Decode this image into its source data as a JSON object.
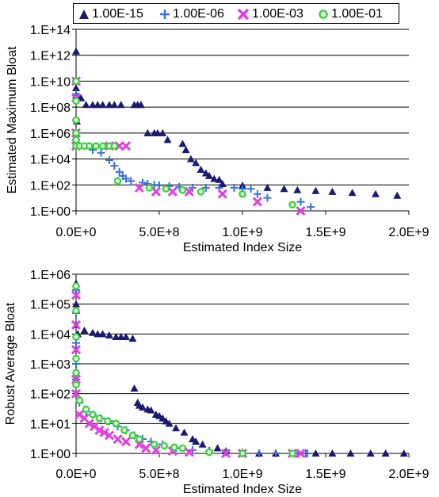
{
  "legend": [
    {
      "label": "1.00E-15",
      "color": "#1a1a6e",
      "marker": "triangle"
    },
    {
      "label": "1.00E-06",
      "color": "#3a6fd8",
      "marker": "plus"
    },
    {
      "label": "1.00E-03",
      "color": "#e040e0",
      "marker": "x"
    },
    {
      "label": "1.00E-01",
      "color": "#3bd43b",
      "marker": "circle"
    }
  ],
  "chart_data": [
    {
      "type": "scatter",
      "title": "",
      "xlabel": "Estimated Index Size",
      "ylabel": "Estimated Maximum Bloat",
      "xlim": [
        0,
        2000000000
      ],
      "ylim": [
        1,
        100000000000000
      ],
      "yscale": "log",
      "grid": "horizontal",
      "legend_position": "top",
      "x_ticks": [
        "0.0E+0",
        "5.0E+8",
        "1.0E+9",
        "1.5E+9",
        "2.0E+9"
      ],
      "y_ticks": [
        "1.E+00",
        "1.E+02",
        "1.E+04",
        "1.E+06",
        "1.E+08",
        "1.E+10",
        "1.E+12",
        "1.E+14"
      ],
      "series": [
        {
          "name": "1.00E-15",
          "points": [
            [
              0,
              2000000000000.0
            ],
            [
              0,
              3000000000.0
            ],
            [
              0,
              800000000.0
            ],
            [
              5000000,
              8000000.0
            ],
            [
              10000000,
              700000000.0
            ],
            [
              30000000,
              500000000.0
            ],
            [
              60000000,
              150000000.0
            ],
            [
              100000000,
              150000000.0
            ],
            [
              130000000,
              150000000.0
            ],
            [
              160000000,
              150000000.0
            ],
            [
              200000000,
              150000000.0
            ],
            [
              230000000,
              150000000.0
            ],
            [
              270000000,
              150000000.0
            ],
            [
              350000000,
              150000000.0
            ],
            [
              370000000,
              150000000.0
            ],
            [
              390000000,
              150000000.0
            ],
            [
              430000000,
              1000000.0
            ],
            [
              470000000,
              1000000.0
            ],
            [
              490000000,
              1000000.0
            ],
            [
              520000000,
              1000000.0
            ],
            [
              550000000,
              300000.0
            ],
            [
              640000000,
              150000.0
            ],
            [
              660000000,
              50000.0
            ],
            [
              690000000,
              10000.0
            ],
            [
              720000000,
              5000
            ],
            [
              750000000,
              1500
            ],
            [
              780000000,
              800
            ],
            [
              800000000,
              500
            ],
            [
              830000000,
              300
            ],
            [
              860000000,
              250
            ],
            [
              880000000,
              120
            ],
            [
              1000000000,
              90
            ],
            [
              1150000000,
              60
            ],
            [
              1250000000,
              50
            ],
            [
              1330000000,
              40
            ],
            [
              1440000000,
              35
            ],
            [
              1540000000,
              30
            ],
            [
              1660000000,
              25
            ],
            [
              1800000000,
              20
            ],
            [
              1930000000,
              15
            ]
          ]
        },
        {
          "name": "1.00E-06",
          "points": [
            [
              0,
              10000000000.0
            ],
            [
              0,
              1000000000.0
            ],
            [
              0,
              10000000.0
            ],
            [
              0,
              300000.0
            ],
            [
              100000000,
              50000.0
            ],
            [
              150000000,
              30000.0
            ],
            [
              200000000,
              8000
            ],
            [
              230000000,
              3000
            ],
            [
              260000000,
              1000
            ],
            [
              280000000,
              500
            ],
            [
              300000000,
              300
            ],
            [
              330000000,
              200
            ],
            [
              400000000,
              150
            ],
            [
              430000000,
              120
            ],
            [
              470000000,
              100
            ],
            [
              500000000,
              90
            ],
            [
              560000000,
              80
            ],
            [
              620000000,
              70
            ],
            [
              700000000,
              60
            ],
            [
              780000000,
              60
            ],
            [
              860000000,
              60
            ],
            [
              950000000,
              60
            ],
            [
              1000000000,
              50
            ],
            [
              1050000000,
              50
            ],
            [
              1090000000,
              20
            ],
            [
              1150000000,
              10
            ],
            [
              1350000000,
              5
            ],
            [
              1410000000,
              2
            ]
          ]
        },
        {
          "name": "1.00E-03",
          "points": [
            [
              0,
              10000000000.0
            ],
            [
              0,
              500000000.0
            ],
            [
              0,
              1000000.0
            ],
            [
              0,
              100000.0
            ],
            [
              200000000,
              100000.0
            ],
            [
              260000000,
              100000.0
            ],
            [
              300000000,
              100000.0
            ],
            [
              380000000,
              60
            ],
            [
              480000000,
              30
            ],
            [
              580000000,
              30
            ],
            [
              680000000,
              30
            ],
            [
              880000000,
              20
            ],
            [
              1090000000,
              5
            ],
            [
              1350000000,
              1
            ]
          ]
        },
        {
          "name": "1.00E-01",
          "points": [
            [
              0,
              10000000000.0
            ],
            [
              0,
              300000000.0
            ],
            [
              0,
              10000000.0
            ],
            [
              0,
              1000000.0
            ],
            [
              0,
              300000.0
            ],
            [
              0,
              100000.0
            ],
            [
              20000000,
              100000.0
            ],
            [
              50000000,
              100000.0
            ],
            [
              80000000,
              100000.0
            ],
            [
              120000000,
              100000.0
            ],
            [
              160000000,
              100000.0
            ],
            [
              200000000,
              100000.0
            ],
            [
              230000000,
              100000.0
            ],
            [
              250000000,
              200
            ],
            [
              440000000,
              60
            ],
            [
              540000000,
              50
            ],
            [
              640000000,
              40
            ],
            [
              750000000,
              30
            ],
            [
              1000000000,
              20
            ],
            [
              1300000000,
              3
            ]
          ]
        }
      ]
    },
    {
      "type": "scatter",
      "title": "",
      "xlabel": "Estimated Index Size",
      "ylabel": "Robust Average Bloat",
      "xlim": [
        0,
        2000000000
      ],
      "ylim": [
        1,
        1000000
      ],
      "yscale": "log",
      "grid": "horizontal",
      "legend_position": "top",
      "x_ticks": [
        "0.0E+0",
        "5.0E+8",
        "1.0E+9",
        "1.5E+9",
        "2.0E+9"
      ],
      "y_ticks": [
        "1.E+00",
        "1.E+01",
        "1.E+02",
        "1.E+03",
        "1.E+04",
        "1.E+05",
        "1.E+06"
      ],
      "series": [
        {
          "name": "1.00E-15",
          "points": [
            [
              0,
              500000
            ],
            [
              0,
              100000
            ],
            [
              0,
              20000
            ],
            [
              10000000,
              10000
            ],
            [
              50000000,
              13000
            ],
            [
              100000000,
              11000
            ],
            [
              130000000,
              10000
            ],
            [
              160000000,
              10000
            ],
            [
              200000000,
              9000
            ],
            [
              240000000,
              8000
            ],
            [
              270000000,
              8000
            ],
            [
              300000000,
              8000
            ],
            [
              340000000,
              7000
            ],
            [
              350000000,
              150
            ],
            [
              370000000,
              50
            ],
            [
              380000000,
              40
            ],
            [
              400000000,
              35
            ],
            [
              430000000,
              30
            ],
            [
              450000000,
              28
            ],
            [
              480000000,
              20
            ],
            [
              500000000,
              18
            ],
            [
              520000000,
              15
            ],
            [
              540000000,
              12
            ],
            [
              560000000,
              10
            ],
            [
              600000000,
              7
            ],
            [
              650000000,
              5
            ],
            [
              700000000,
              3
            ],
            [
              720000000,
              2.5
            ],
            [
              760000000,
              2
            ],
            [
              850000000,
              1.5
            ],
            [
              900000000,
              1.2
            ],
            [
              1000000000,
              1.1
            ],
            [
              1100000000,
              1
            ],
            [
              1200000000,
              1
            ],
            [
              1300000000,
              1
            ],
            [
              1440000000,
              1
            ],
            [
              1540000000,
              1
            ],
            [
              1650000000,
              1
            ],
            [
              1770000000,
              1
            ],
            [
              1860000000,
              1
            ],
            [
              1970000000,
              1
            ]
          ]
        },
        {
          "name": "1.00E-06",
          "points": [
            [
              0,
              300000
            ],
            [
              0,
              50000
            ],
            [
              0,
              5000
            ],
            [
              0,
              1000
            ],
            [
              0,
              300
            ],
            [
              20000000,
              50
            ],
            [
              60000000,
              25
            ],
            [
              100000000,
              20
            ],
            [
              150000000,
              15
            ],
            [
              200000000,
              12
            ],
            [
              250000000,
              8
            ],
            [
              300000000,
              6
            ],
            [
              350000000,
              4
            ],
            [
              400000000,
              3
            ],
            [
              450000000,
              2.5
            ],
            [
              520000000,
              2
            ],
            [
              600000000,
              1.5
            ],
            [
              700000000,
              1.3
            ],
            [
              800000000,
              1.2
            ],
            [
              900000000,
              1.1
            ],
            [
              1000000000,
              1
            ],
            [
              1100000000,
              1
            ],
            [
              1200000000,
              1
            ],
            [
              1330000000,
              1
            ],
            [
              1380000000,
              1
            ],
            [
              1390000000,
              1
            ]
          ]
        },
        {
          "name": "1.00E-03",
          "points": [
            [
              0,
              200000
            ],
            [
              0,
              20000
            ],
            [
              0,
              3000
            ],
            [
              0,
              300
            ],
            [
              0,
              100
            ],
            [
              20000000,
              20
            ],
            [
              50000000,
              15
            ],
            [
              80000000,
              10
            ],
            [
              110000000,
              8
            ],
            [
              140000000,
              6
            ],
            [
              170000000,
              5
            ],
            [
              200000000,
              4
            ],
            [
              250000000,
              3
            ],
            [
              300000000,
              2.5
            ],
            [
              380000000,
              2
            ],
            [
              420000000,
              1.5
            ],
            [
              480000000,
              1.3
            ],
            [
              580000000,
              1.2
            ],
            [
              680000000,
              1.1
            ],
            [
              900000000,
              1
            ],
            [
              1000000000,
              1
            ],
            [
              1300000000,
              1
            ],
            [
              1350000000,
              1
            ]
          ]
        },
        {
          "name": "1.00E-01",
          "points": [
            [
              0,
              400000
            ],
            [
              0,
              60000
            ],
            [
              0,
              8000
            ],
            [
              0,
              1500
            ],
            [
              0,
              500
            ],
            [
              0,
              200
            ],
            [
              20000000,
              60
            ],
            [
              60000000,
              30
            ],
            [
              100000000,
              20
            ],
            [
              140000000,
              15
            ],
            [
              190000000,
              12
            ],
            [
              240000000,
              10
            ],
            [
              290000000,
              6
            ],
            [
              340000000,
              4
            ],
            [
              380000000,
              3
            ],
            [
              470000000,
              2
            ],
            [
              530000000,
              1.8
            ],
            [
              590000000,
              1.6
            ],
            [
              640000000,
              1.5
            ],
            [
              800000000,
              1.1
            ],
            [
              1000000000,
              1
            ],
            [
              1300000000,
              1
            ]
          ]
        }
      ]
    }
  ]
}
